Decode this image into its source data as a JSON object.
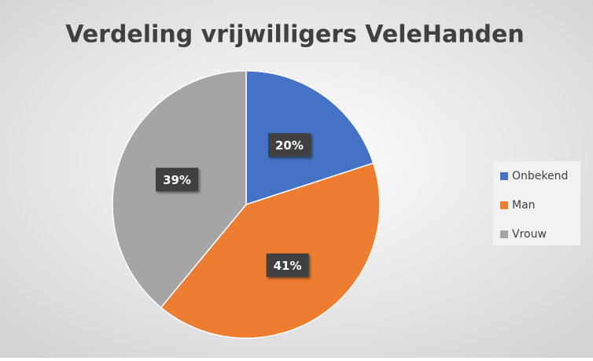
{
  "chart_data": {
    "type": "pie",
    "title": "Verdeling vrijwilligers VeleHanden",
    "categories": [
      "Onbekend",
      "Man",
      "Vrouw"
    ],
    "values": [
      20,
      41,
      39
    ],
    "value_labels": [
      "20%",
      "41%",
      "39%"
    ],
    "colors": [
      "#4472c4",
      "#ed7d31",
      "#a5a5a5"
    ],
    "legend": "right"
  }
}
